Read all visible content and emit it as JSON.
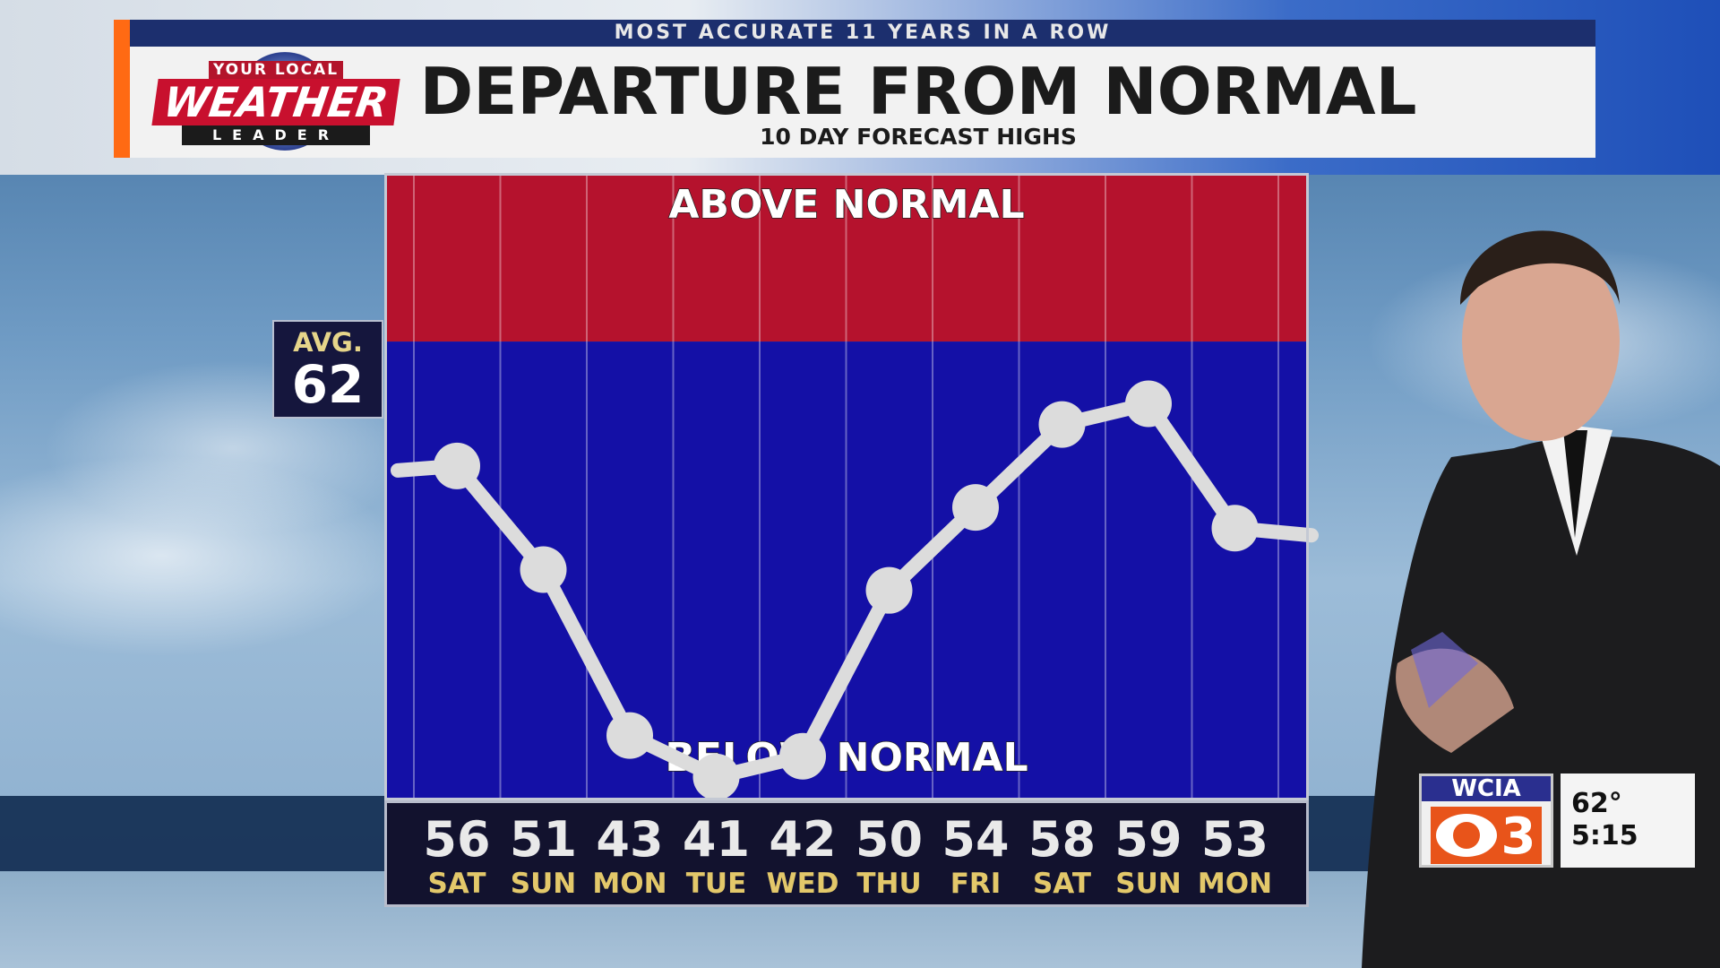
{
  "header": {
    "banner": "MOST ACCURATE 11 YEARS IN A ROW",
    "title": "DEPARTURE FROM NORMAL",
    "subtitle": "10 DAY FORECAST HIGHS"
  },
  "logo": {
    "top": "YOUR LOCAL",
    "main": "WEATHER",
    "bottom": "LEADER"
  },
  "average": {
    "label": "AVG.",
    "value": "62"
  },
  "station": {
    "call_letters": "WCIA",
    "channel": "3",
    "temperature": "62°",
    "time": "5:15"
  },
  "colors": {
    "above": "#b5122d",
    "below": "#1410a6",
    "line": "#dcdcdc",
    "day_text": "#e3c86a"
  },
  "chart_data": {
    "type": "line",
    "title": "DEPARTURE FROM NORMAL",
    "subtitle": "10 DAY FORECAST HIGHS",
    "zone_labels": {
      "above": "ABOVE NORMAL",
      "below": "BELOW NORMAL"
    },
    "normal": 62,
    "categories": [
      "SAT",
      "SUN",
      "MON",
      "TUE",
      "WED",
      "THU",
      "FRI",
      "SAT",
      "SUN",
      "MON"
    ],
    "values": [
      56,
      51,
      43,
      41,
      42,
      50,
      54,
      58,
      59,
      53
    ],
    "ylim": [
      40,
      70
    ],
    "grid": true
  }
}
